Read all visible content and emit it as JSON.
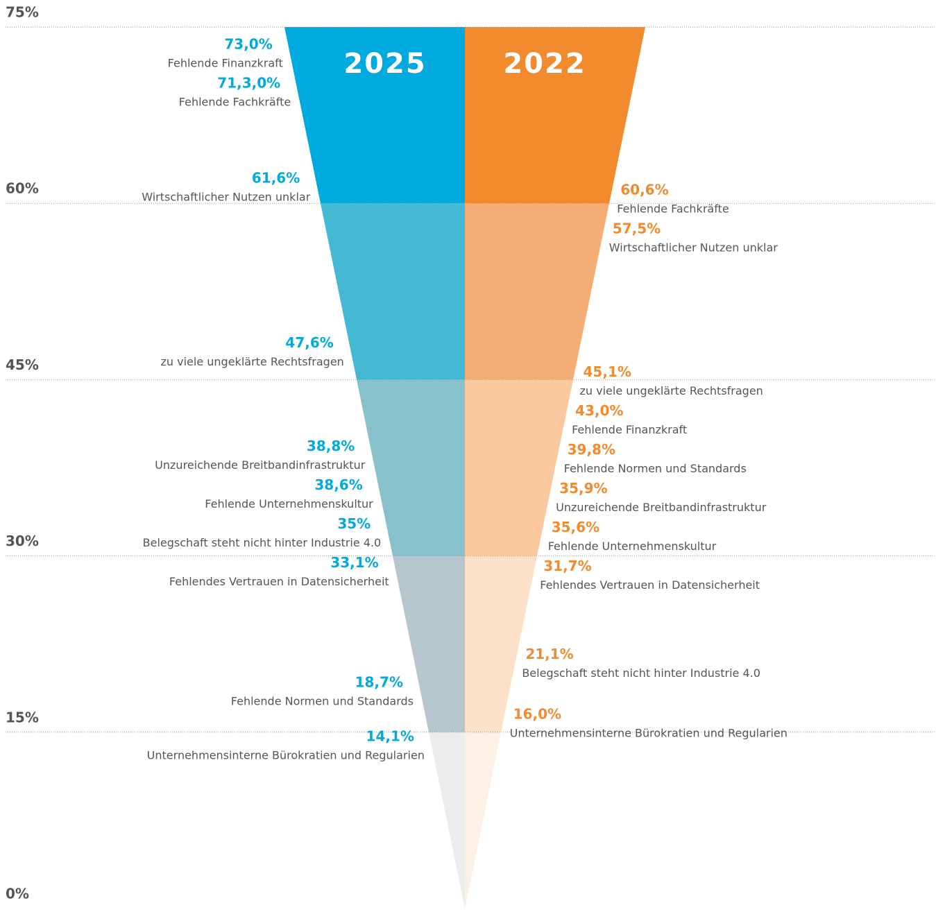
{
  "chart_data": {
    "type": "funnel",
    "ylim": [
      0,
      75
    ],
    "yticks": [
      {
        "value": 0,
        "label": "0%"
      },
      {
        "value": 15,
        "label": "15%"
      },
      {
        "value": 30,
        "label": "30%"
      },
      {
        "value": 45,
        "label": "45%"
      },
      {
        "value": 60,
        "label": "60%"
      },
      {
        "value": 75,
        "label": "75%"
      }
    ],
    "grid": true,
    "series": [
      {
        "name": "2025",
        "side": "left",
        "color": "#00a9de",
        "colors": [
          "#00a9de",
          "#45b9d3",
          "#88c0cc",
          "#b5c6cc",
          "#ececec"
        ],
        "categories": [
          "Fehlende Finanzkraft",
          "Fehlende Fachkräfte",
          "Wirtschaftlicher Nutzen unklar",
          "zu viele ungeklärte Rechtsfragen",
          "Unzureichende Breitbandinfrastruktur",
          "Fehlende Unternehmenskultur",
          "Belegschaft steht nicht hinter Industrie 4.0",
          "Fehlendes Vertrauen in Datensicherheit",
          "Fehlende Normen und Standards",
          "Unternehmensinterne Bürokratien und Regularien"
        ],
        "values": [
          73.0,
          71.3,
          61.6,
          47.6,
          38.8,
          38.6,
          35,
          33.1,
          18.7,
          14.1
        ],
        "value_labels": [
          "73,0%",
          "71,3,0%",
          "61,6%",
          "47,6%",
          "38,8%",
          "38,6%",
          "35%",
          "33,1%",
          "18,7%",
          "14,1%"
        ]
      },
      {
        "name": "2022",
        "side": "right",
        "color": "#f28a2e",
        "colors": [
          "#f28a2e",
          "#f5ad76",
          "#fac89e",
          "#fce0c8",
          "#fdf0e4"
        ],
        "categories": [
          "Fehlende Fachkräfte",
          "Wirtschaftlicher Nutzen unklar",
          "zu viele ungeklärte Rechtsfragen",
          "Fehlende Finanzkraft",
          "Fehlende Normen und Standards",
          "Unzureichende Breitbandinfrastruktur",
          "Fehlende Unternehmenskultur",
          "Fehlendes Vertrauen in Datensicherheit",
          "Belegschaft steht nicht hinter Industrie 4.0",
          "Unternehmensinterne Bürokratien und Regularien"
        ],
        "values": [
          60.6,
          57.5,
          45.1,
          43.0,
          39.8,
          35.9,
          35.6,
          31.7,
          21.1,
          16.0
        ],
        "value_labels": [
          "60,6%",
          "57,5%",
          "45,1%",
          "43,0%",
          "39,8%",
          "35,9%",
          "35,6%",
          "31,7%",
          "21,1%",
          "16,0%"
        ]
      }
    ]
  }
}
